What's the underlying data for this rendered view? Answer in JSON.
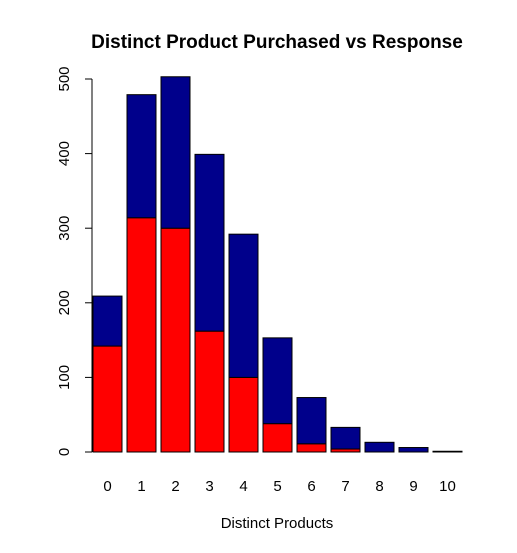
{
  "chart_data": {
    "type": "bar",
    "stacked": true,
    "title": "Distinct Product Purchased vs Response",
    "xlabel": "Distinct Products",
    "ylabel": "",
    "ylim": [
      0,
      500
    ],
    "yticks": [
      0,
      100,
      200,
      300,
      400,
      500
    ],
    "categories": [
      "0",
      "1",
      "2",
      "3",
      "4",
      "5",
      "6",
      "7",
      "8",
      "9",
      "10"
    ],
    "series": [
      {
        "color": "#ff0000",
        "values": [
          142,
          314,
          300,
          162,
          100,
          38,
          11,
          4,
          0,
          0,
          0
        ]
      },
      {
        "color": "#00008b",
        "values": [
          67,
          165,
          203,
          237,
          192,
          115,
          62,
          29,
          13,
          6,
          1
        ]
      }
    ],
    "grid": false,
    "legend": "none"
  }
}
